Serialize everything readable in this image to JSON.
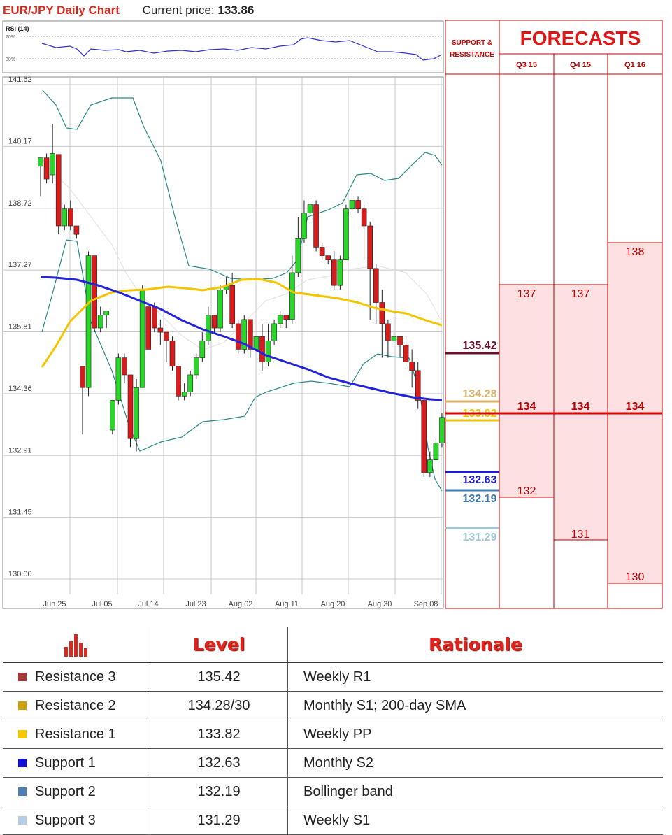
{
  "header": {
    "title": "EUR/JPY Daily Chart",
    "price_label": "Current price:",
    "price_value": "133.86"
  },
  "rsi": {
    "label": "RSI (14)",
    "levels": [
      "70%",
      "30%"
    ]
  },
  "chart_data": {
    "type": "candlestick",
    "yticks": [
      "141.62",
      "140.17",
      "138.72",
      "137.27",
      "135.81",
      "134.36",
      "132.91",
      "131.45",
      "130.00"
    ],
    "ylim": [
      130.0,
      141.62
    ],
    "xticks": [
      "Jun 25",
      "Jul 05",
      "Jul 14",
      "Jul 23",
      "Aug 02",
      "Aug 11",
      "Aug 20",
      "Aug 30",
      "Sep 08"
    ],
    "candles": [
      [
        139.7,
        139.9,
        139.1,
        139.0
      ],
      [
        139.9,
        139.4,
        140.0,
        139.3
      ],
      [
        139.5,
        140.0,
        140.7,
        139.3
      ],
      [
        139.98,
        138.3,
        139.98,
        138.1
      ],
      [
        138.3,
        138.7,
        138.8,
        138.2
      ],
      [
        138.7,
        138.3,
        138.9,
        138.2
      ],
      [
        138.3,
        138.1,
        138.2,
        138.0
      ],
      [
        135.0,
        134.5,
        134.9,
        133.4
      ],
      [
        134.5,
        137.6,
        137.7,
        134.3
      ],
      [
        137.6,
        135.9,
        137.6,
        135.8
      ],
      [
        135.9,
        136.2,
        136.4,
        135.8
      ],
      [
        136.2,
        136.3,
        136.3,
        135.9
      ],
      [
        133.5,
        134.2,
        134.2,
        133.4
      ],
      [
        134.2,
        135.2,
        135.3,
        134.1
      ],
      [
        135.2,
        134.8,
        135.3,
        134.6
      ],
      [
        134.8,
        133.3,
        134.8,
        133.1
      ],
      [
        133.3,
        134.5,
        134.7,
        133.0
      ],
      [
        134.5,
        136.8,
        136.9,
        134.5
      ],
      [
        136.4,
        135.4,
        135.9,
        135.5
      ],
      [
        136.4,
        135.9,
        136.5,
        135.8
      ],
      [
        135.9,
        135.8,
        136.1,
        135.5
      ],
      [
        135.8,
        135.6,
        135.8,
        135.1
      ],
      [
        135.6,
        135.0,
        135.7,
        134.9
      ],
      [
        135.0,
        134.3,
        135.0,
        134.2
      ],
      [
        134.3,
        134.4,
        134.6,
        134.2
      ],
      [
        134.4,
        134.8,
        134.9,
        134.3
      ],
      [
        134.8,
        135.2,
        135.3,
        134.7
      ],
      [
        135.2,
        135.6,
        135.8,
        135.1
      ],
      [
        135.6,
        136.2,
        136.4,
        135.5
      ],
      [
        136.2,
        135.9,
        136.2,
        135.8
      ],
      [
        135.9,
        136.8,
        136.9,
        135.8
      ],
      [
        136.8,
        136.9,
        137.1,
        136.7
      ],
      [
        136.9,
        136.0,
        137.2,
        135.9
      ],
      [
        136.0,
        135.4,
        136.1,
        135.3
      ],
      [
        135.4,
        136.1,
        136.2,
        135.3
      ],
      [
        136.1,
        135.4,
        136.1,
        135.2
      ],
      [
        135.4,
        135.7,
        135.7,
        135.4
      ],
      [
        135.7,
        135.1,
        136.0,
        134.9
      ],
      [
        135.1,
        135.6,
        136.0,
        135.0
      ],
      [
        135.6,
        136.0,
        136.1,
        135.5
      ],
      [
        136.0,
        136.2,
        136.3,
        135.9
      ],
      [
        136.2,
        136.1,
        136.2,
        135.9
      ],
      [
        136.1,
        137.2,
        137.6,
        136.0
      ],
      [
        137.2,
        138.0,
        138.5,
        137.1
      ],
      [
        138.0,
        138.6,
        138.9,
        137.9
      ],
      [
        138.6,
        138.8,
        138.9,
        138.4
      ],
      [
        138.8,
        137.8,
        138.9,
        137.7
      ],
      [
        137.8,
        137.6,
        137.9,
        137.5
      ],
      [
        137.6,
        137.5,
        137.6,
        137.4
      ],
      [
        137.5,
        136.9,
        137.7,
        136.8
      ],
      [
        136.9,
        137.5,
        137.6,
        136.8
      ],
      [
        137.5,
        138.7,
        138.8,
        137.5
      ],
      [
        138.7,
        138.9,
        138.9,
        138.6
      ],
      [
        138.9,
        138.7,
        139.0,
        138.6
      ],
      [
        138.7,
        138.3,
        138.8,
        137.5
      ],
      [
        138.3,
        137.3,
        138.4,
        136.1
      ],
      [
        137.3,
        136.5,
        137.4,
        136.0
      ],
      [
        136.5,
        136.0,
        136.8,
        135.2
      ],
      [
        136.0,
        135.6,
        136.1,
        135.2
      ],
      [
        135.6,
        135.7,
        136.2,
        135.5
      ],
      [
        135.7,
        135.5,
        135.6,
        135.2
      ],
      [
        135.5,
        135.1,
        135.7,
        135.0
      ],
      [
        135.1,
        134.9,
        135.4,
        134.5
      ],
      [
        134.9,
        134.2,
        135.1,
        134.0
      ],
      [
        134.2,
        132.5,
        134.3,
        132.4
      ],
      [
        132.5,
        132.8,
        133.0,
        132.4
      ],
      [
        132.8,
        133.2,
        133.3,
        132.8
      ],
      [
        133.2,
        133.8,
        133.9,
        133.1
      ]
    ],
    "series": [
      {
        "name": "SMA 200",
        "color": "#2222dd",
        "values": [
          [
            0,
            137.27
          ],
          [
            20,
            136.4
          ],
          [
            40,
            135.3
          ],
          [
            60,
            134.5
          ],
          [
            67,
            134.3
          ]
        ]
      },
      {
        "name": "SMA 55",
        "color": "#f4b400",
        "values": [
          [
            0,
            135.0
          ],
          [
            10,
            136.7
          ],
          [
            20,
            136.9
          ],
          [
            30,
            136.9
          ],
          [
            40,
            136.9
          ],
          [
            50,
            136.7
          ],
          [
            60,
            136.2
          ],
          [
            67,
            135.9
          ]
        ]
      }
    ]
  },
  "sr_header": "SUPPORT & RESISTANCE",
  "forecasts": {
    "title": "FORECASTS",
    "columns": [
      "Q3 15",
      "Q4 15",
      "Q1 16"
    ],
    "values": [
      {
        "high": "137",
        "mid": "134",
        "low": "132"
      },
      {
        "high": "137",
        "mid": "134",
        "low": "131"
      },
      {
        "high": "138",
        "mid": "134",
        "low": "130"
      }
    ]
  },
  "levels_markers": [
    {
      "value": "135.42",
      "color": "#6b1030"
    },
    {
      "value": "134.28",
      "color": "#d8b06a"
    },
    {
      "value": "133.82",
      "color": "#f2c200"
    },
    {
      "value": "132.63",
      "color": "#1c1cd0"
    },
    {
      "value": "132.19",
      "color": "#3f7ab0"
    },
    {
      "value": "131.29",
      "color": "#9fc6d6"
    }
  ],
  "table": {
    "headers": [
      "Level",
      "Rationale"
    ],
    "rows": [
      {
        "name": "Resistance 3",
        "level": "135.42",
        "rationale": "Weekly R1",
        "color": "#a33a3a"
      },
      {
        "name": "Resistance 2",
        "level": "134.28/30",
        "rationale": "Monthly S1; 200-day SMA",
        "color": "#c9a004"
      },
      {
        "name": "Resistance 1",
        "level": "133.82",
        "rationale": "Weekly PP",
        "color": "#f7c800"
      },
      {
        "name": "Support 1",
        "level": "132.63",
        "rationale": "Monthly S2",
        "color": "#1010d8"
      },
      {
        "name": "Support 2",
        "level": "132.19",
        "rationale": "Bollinger band",
        "color": "#4d7fb7"
      },
      {
        "name": "Support 3",
        "level": "131.29",
        "rationale": "Weekly S1",
        "color": "#b6cde6"
      }
    ]
  }
}
